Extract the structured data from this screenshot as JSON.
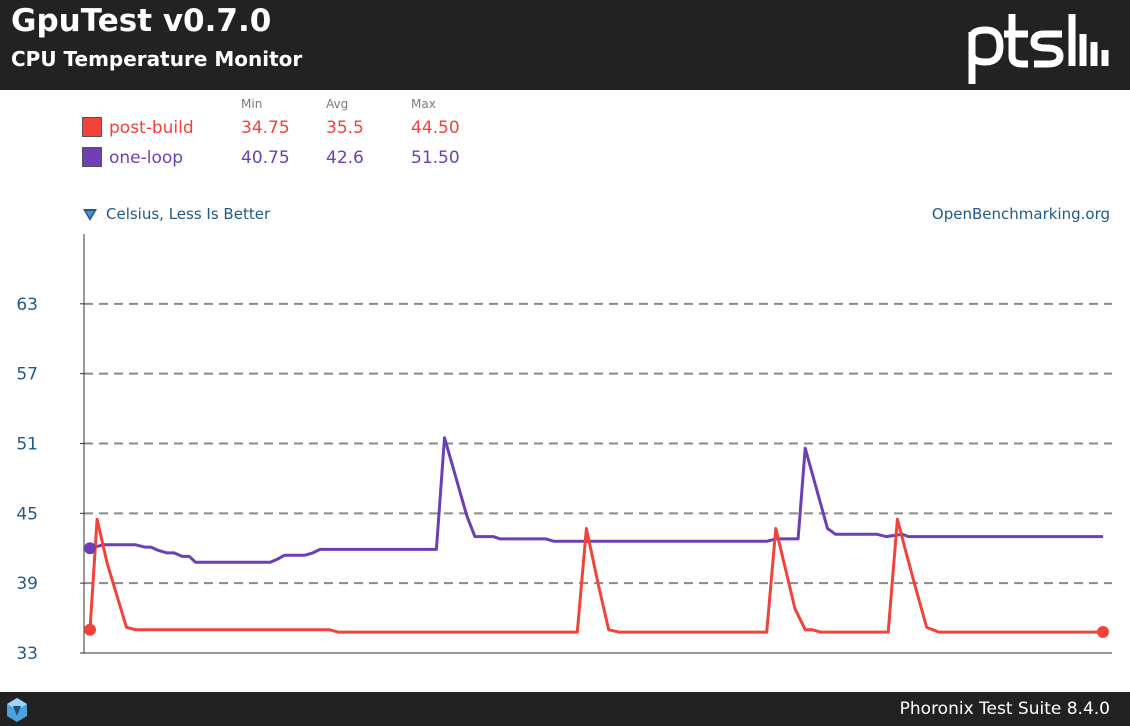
{
  "header": {
    "title": "GpuTest v0.7.0",
    "subtitle": "CPU Temperature Monitor",
    "logo_text": "ptsh"
  },
  "legend": {
    "col_min": "Min",
    "col_avg": "Avg",
    "col_max": "Max",
    "rows": [
      {
        "name": "post-build",
        "min": "34.75",
        "avg": "35.5",
        "max": "44.50",
        "color": "#f1433a"
      },
      {
        "name": "one-loop",
        "min": "40.75",
        "avg": "42.6",
        "max": "51.50",
        "color": "#6c3fb5"
      }
    ]
  },
  "chart_meta": {
    "unit_label": "Celsius, Less Is Better",
    "source": "OpenBenchmarking.org"
  },
  "footer": {
    "text": "Phoronix Test Suite 8.4.0"
  },
  "colors": {
    "header_bg": "#222222",
    "axis_label": "#215a8a",
    "grid": "#8a8a8a"
  },
  "chart_data": {
    "type": "line",
    "title": "CPU Temperature Monitor",
    "ylabel": "Celsius, Less Is Better",
    "ylim": [
      33,
      69
    ],
    "yticks": [
      33,
      39,
      45,
      51,
      57,
      63
    ],
    "xlim": [
      0,
      100
    ],
    "grid": true,
    "legend_position": "top-left",
    "series": [
      {
        "name": "post-build",
        "color": "#f1433a",
        "values": [
          [
            0,
            35.0
          ],
          [
            0.7,
            44.5
          ],
          [
            1.7,
            40.7
          ],
          [
            3.6,
            35.2
          ],
          [
            4.5,
            35.0
          ],
          [
            23.6,
            35.0
          ],
          [
            24.5,
            34.8
          ],
          [
            48.1,
            34.8
          ],
          [
            49.0,
            43.7
          ],
          [
            50.2,
            38.8
          ],
          [
            51.2,
            35.0
          ],
          [
            52.2,
            34.8
          ],
          [
            66.8,
            34.8
          ],
          [
            67.7,
            43.7
          ],
          [
            69.6,
            36.8
          ],
          [
            70.6,
            35.0
          ],
          [
            71.3,
            35.0
          ],
          [
            72.1,
            34.8
          ],
          [
            78.8,
            34.8
          ],
          [
            79.7,
            44.5
          ],
          [
            80.6,
            41.5
          ],
          [
            81.5,
            38.6
          ],
          [
            82.6,
            35.2
          ],
          [
            83.8,
            34.8
          ],
          [
            100,
            34.8
          ]
        ]
      },
      {
        "name": "one-loop",
        "color": "#6c3fb5",
        "values": [
          [
            0,
            42.0
          ],
          [
            1.3,
            42.3
          ],
          [
            4.5,
            42.3
          ],
          [
            5.4,
            42.1
          ],
          [
            6.0,
            42.1
          ],
          [
            6.8,
            41.8
          ],
          [
            7.6,
            41.6
          ],
          [
            8.3,
            41.6
          ],
          [
            9.1,
            41.3
          ],
          [
            9.8,
            41.3
          ],
          [
            10.4,
            40.8
          ],
          [
            17.8,
            40.8
          ],
          [
            18.6,
            41.1
          ],
          [
            19.2,
            41.4
          ],
          [
            21.2,
            41.4
          ],
          [
            22.0,
            41.6
          ],
          [
            22.7,
            41.9
          ],
          [
            34.2,
            41.9
          ],
          [
            35.0,
            51.5
          ],
          [
            37.2,
            44.8
          ],
          [
            38.0,
            43.0
          ],
          [
            39.8,
            43.0
          ],
          [
            40.5,
            42.8
          ],
          [
            45.0,
            42.8
          ],
          [
            45.8,
            42.6
          ],
          [
            66.8,
            42.6
          ],
          [
            67.7,
            42.8
          ],
          [
            69.9,
            42.8
          ],
          [
            70.6,
            50.6
          ],
          [
            72.8,
            43.7
          ],
          [
            73.6,
            43.2
          ],
          [
            77.7,
            43.2
          ],
          [
            78.6,
            43.0
          ],
          [
            80.2,
            43.2
          ],
          [
            80.8,
            43.0
          ],
          [
            100,
            43.0
          ]
        ]
      }
    ]
  }
}
